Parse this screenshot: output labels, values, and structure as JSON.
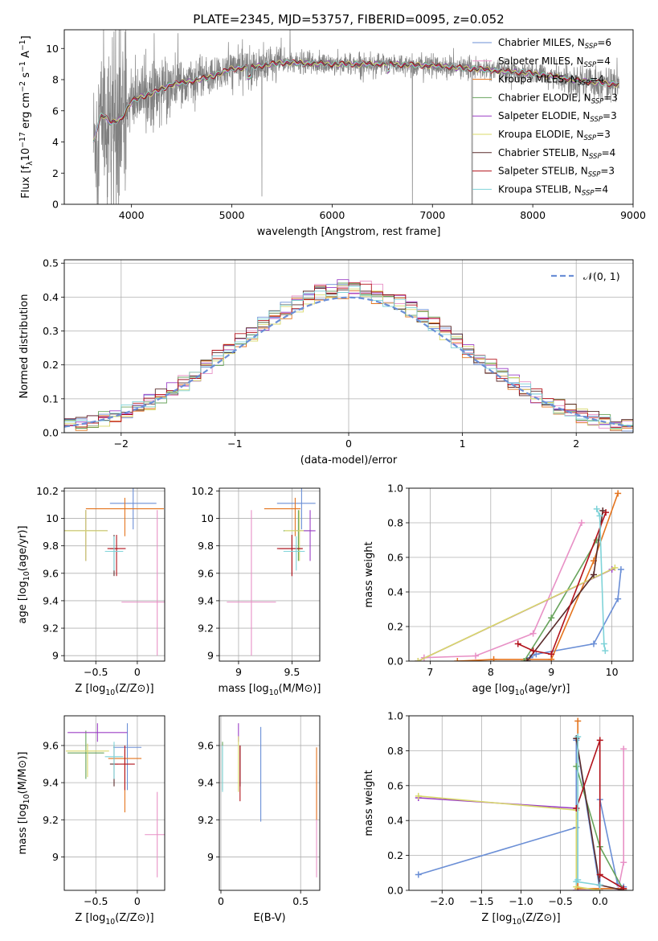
{
  "chart_data": [
    {
      "id": "spectrum",
      "type": "line",
      "title": "PLATE=2345, MJD=53757, FIBERID=0095, z=0.052",
      "xlabel": "wavelength [Angstrom, rest frame]",
      "ylabel": "Flux [f_λ 10^-17 erg cm^-2 s^-1 A^-1]",
      "xlim": [
        3330,
        9000
      ],
      "ylim": [
        0,
        11.2
      ],
      "xticks": [
        4000,
        5000,
        6000,
        7000,
        8000,
        9000
      ],
      "yticks": [
        0,
        2,
        4,
        6,
        8,
        10
      ],
      "grid": false,
      "legend_position": "right",
      "data_color": "#808080",
      "data_shape": {
        "x": [
          3620,
          3700,
          3800,
          3900,
          4000,
          4100,
          4200,
          4400,
          4600,
          4800,
          5000,
          5200,
          5500,
          6000,
          6500,
          7000,
          7400,
          7600,
          8000,
          8500,
          8850
        ],
        "y": [
          4.0,
          5.8,
          5.2,
          5.5,
          6.6,
          6.9,
          7.1,
          7.7,
          7.9,
          8.2,
          8.7,
          8.8,
          9.1,
          9.0,
          9.0,
          8.9,
          8.7,
          8.6,
          8.4,
          7.9,
          7.7
        ]
      },
      "series": [
        {
          "name": "Chabrier MILES",
          "nssp": "6",
          "color": "#6b8fd6"
        },
        {
          "name": "Salpeter MILES",
          "nssp": "4",
          "color": "#e891c6"
        },
        {
          "name": "Kroupa MILES",
          "nssp": "4",
          "color": "#e4741e"
        },
        {
          "name": "Chabrier ELODIE",
          "nssp": "3",
          "color": "#67a35b"
        },
        {
          "name": "Salpeter ELODIE",
          "nssp": "3",
          "color": "#9b3fc6"
        },
        {
          "name": "Kroupa ELODIE",
          "nssp": "3",
          "color": "#d8d86a"
        },
        {
          "name": "Chabrier STELIB",
          "nssp": "4",
          "color": "#5a2b2b"
        },
        {
          "name": "Salpeter STELIB",
          "nssp": "3",
          "color": "#b2121b"
        },
        {
          "name": "Kroupa STELIB",
          "nssp": "4",
          "color": "#7fd3d8"
        }
      ]
    },
    {
      "id": "residuals",
      "type": "line",
      "xlabel": "(data-model)/error",
      "ylabel": "Normed distribution",
      "xlim": [
        -2.5,
        2.5
      ],
      "ylim": [
        0,
        0.51
      ],
      "xticks": [
        -2,
        -1,
        0,
        1,
        2
      ],
      "yticks": [
        0.0,
        0.1,
        0.2,
        0.3,
        0.4,
        0.5
      ],
      "grid": true,
      "legend": "𝒩(0, 1)",
      "legend_position": "top-right",
      "bin_width": 0.1,
      "normal_color": "#6b8fd6"
    },
    {
      "id": "age_vs_Z",
      "type": "scatter",
      "xlabel": "Z [log10(Z/Z⊙)]",
      "ylabel": "age  [log10(age/yr)]",
      "xlim": [
        -0.88,
        0.33
      ],
      "ylim": [
        8.96,
        10.22
      ],
      "xticks": [
        -0.5,
        0.0
      ],
      "yticks": [
        9.0,
        9.2,
        9.4,
        9.6,
        9.8,
        10.0,
        10.2
      ],
      "grid": true,
      "points": [
        {
          "series": "Chabrier MILES",
          "x": -0.05,
          "y": 10.11,
          "xerr": [
            0.28,
            0.28
          ],
          "yerr": [
            0.19,
            0.11
          ]
        },
        {
          "series": "Salpeter MILES",
          "x": 0.24,
          "y": 9.39,
          "xerr": [
            0.43,
            0.43
          ],
          "yerr": [
            0.39,
            0.67
          ]
        },
        {
          "series": "Kroupa MILES",
          "x": -0.15,
          "y": 10.07,
          "xerr": [
            0.47,
            0.47
          ],
          "yerr": [
            0.2,
            0.08
          ]
        },
        {
          "series": "Chabrier ELODIE",
          "x": -0.62,
          "y": 9.91,
          "xerr": [
            0.26,
            0.26
          ],
          "yerr": [
            0.22,
            0.15
          ]
        },
        {
          "series": "Salpeter ELODIE",
          "x": -0.62,
          "y": 9.91,
          "xerr": [
            0.26,
            0.26
          ],
          "yerr": [
            0.22,
            0.15
          ]
        },
        {
          "series": "Kroupa ELODIE",
          "x": -0.62,
          "y": 9.91,
          "xerr": [
            0.26,
            0.26
          ],
          "yerr": [
            0.22,
            0.15
          ]
        },
        {
          "series": "Chabrier STELIB",
          "x": -0.28,
          "y": 9.78,
          "xerr": [
            0.05,
            0.05
          ],
          "yerr": [
            0.2,
            0.1
          ]
        },
        {
          "series": "Salpeter STELIB",
          "x": -0.25,
          "y": 9.78,
          "xerr": [
            0.11,
            0.11
          ],
          "yerr": [
            0.2,
            0.1
          ]
        },
        {
          "series": "Kroupa STELIB",
          "x": -0.28,
          "y": 9.76,
          "xerr": [
            0.11,
            0.11
          ],
          "yerr": [
            0.14,
            0.11
          ]
        }
      ]
    },
    {
      "id": "age_vs_mass",
      "type": "scatter",
      "xlabel": "mass [log10(M/M⊙)]",
      "ylabel": "",
      "xlim": [
        8.82,
        9.76
      ],
      "ylim": [
        8.96,
        10.22
      ],
      "xticks": [
        9.0,
        9.5
      ],
      "yticks": [
        9.0,
        9.2,
        9.4,
        9.6,
        9.8,
        10.0,
        10.2
      ],
      "grid": true,
      "points": [
        {
          "series": "Chabrier MILES",
          "x": 9.59,
          "y": 10.11,
          "xerr": [
            0.23,
            0.13
          ],
          "yerr": [
            0.19,
            0.11
          ]
        },
        {
          "series": "Salpeter MILES",
          "x": 9.12,
          "y": 9.39,
          "xerr": [
            0.23,
            0.23
          ],
          "yerr": [
            0.39,
            0.67
          ]
        },
        {
          "series": "Kroupa MILES",
          "x": 9.53,
          "y": 10.07,
          "xerr": [
            0.29,
            0.05
          ],
          "yerr": [
            0.2,
            0.08
          ]
        },
        {
          "series": "Chabrier ELODIE",
          "x": 9.56,
          "y": 9.91,
          "xerr": [
            0.14,
            0.12
          ],
          "yerr": [
            0.22,
            0.15
          ]
        },
        {
          "series": "Salpeter ELODIE",
          "x": 9.67,
          "y": 9.91,
          "xerr": [
            0.14,
            0.05
          ],
          "yerr": [
            0.22,
            0.15
          ]
        },
        {
          "series": "Kroupa ELODIE",
          "x": 9.57,
          "y": 9.91,
          "xerr": [
            0.14,
            0.04
          ],
          "yerr": [
            0.22,
            0.15
          ]
        },
        {
          "series": "Chabrier STELIB",
          "x": 9.5,
          "y": 9.78,
          "xerr": [
            0.12,
            0.1
          ],
          "yerr": [
            0.2,
            0.1
          ]
        },
        {
          "series": "Salpeter STELIB",
          "x": 9.5,
          "y": 9.78,
          "xerr": [
            0.14,
            0.1
          ],
          "yerr": [
            0.2,
            0.1
          ]
        },
        {
          "series": "Kroupa STELIB",
          "x": 9.54,
          "y": 9.76,
          "xerr": [
            0.12,
            0.08
          ],
          "yerr": [
            0.14,
            0.11
          ]
        }
      ]
    },
    {
      "id": "weight_vs_age",
      "type": "line",
      "xlabel": "age  [log10(age/yr)]",
      "ylabel": "mass weight",
      "xlim": [
        6.65,
        10.35
      ],
      "ylim": [
        0,
        1.0
      ],
      "xticks": [
        7,
        8,
        9,
        10
      ],
      "yticks": [
        0.0,
        0.2,
        0.4,
        0.6,
        0.8,
        1.0
      ],
      "grid": true,
      "series": [
        {
          "name": "Chabrier MILES",
          "x": [
            8.6,
            8.65,
            8.75,
            9.7,
            10.1,
            10.15
          ],
          "y": [
            0.0,
            0.02,
            0.04,
            0.1,
            0.36,
            0.53
          ]
        },
        {
          "name": "Salpeter MILES",
          "x": [
            6.9,
            7.75,
            8.7,
            9.5
          ],
          "y": [
            0.02,
            0.03,
            0.16,
            0.8
          ]
        },
        {
          "name": "Kroupa MILES",
          "x": [
            7.45,
            8.05,
            9.0,
            9.7,
            10.1
          ],
          "y": [
            0.0,
            0.01,
            0.01,
            0.58,
            0.97
          ]
        },
        {
          "name": "Chabrier ELODIE",
          "x": [
            8.55,
            9.0,
            9.75
          ],
          "y": [
            0.0,
            0.25,
            0.7
          ]
        },
        {
          "name": "Salpeter ELODIE",
          "x": [
            6.8,
            10.0
          ],
          "y": [
            0.0,
            0.53
          ]
        },
        {
          "name": "Kroupa ELODIE",
          "x": [
            6.8,
            10.05
          ],
          "y": [
            0.0,
            0.54
          ]
        },
        {
          "name": "Chabrier STELIB",
          "x": [
            8.6,
            9.7,
            9.85
          ],
          "y": [
            0.0,
            0.5,
            0.87
          ]
        },
        {
          "name": "Salpeter STELIB",
          "x": [
            8.45,
            8.7,
            9.0,
            9.9
          ],
          "y": [
            0.1,
            0.06,
            0.04,
            0.86
          ]
        },
        {
          "name": "Kroupa STELIB",
          "x": [
            9.75,
            9.8,
            9.87,
            9.89
          ],
          "y": [
            0.88,
            0.84,
            0.1,
            0.06
          ]
        }
      ]
    },
    {
      "id": "mass_vs_Z",
      "type": "scatter",
      "xlabel": "Z [log10(Z/Z⊙)]",
      "ylabel": "mass [log10(M/M⊙)]",
      "xlim": [
        -0.88,
        0.33
      ],
      "ylim": [
        8.82,
        9.76
      ],
      "xticks": [
        -0.5,
        0.0
      ],
      "yticks": [
        9.0,
        9.2,
        9.4,
        9.6
      ],
      "grid": true,
      "points": [
        {
          "series": "Chabrier MILES",
          "x": -0.12,
          "y": 9.59,
          "xerr": [
            0.17,
            0.17
          ],
          "yerr": [
            0.23,
            0.13
          ]
        },
        {
          "series": "Salpeter MILES",
          "x": 0.24,
          "y": 9.12,
          "xerr": [
            0.15,
            0.15
          ],
          "yerr": [
            0.23,
            0.23
          ]
        },
        {
          "series": "Kroupa MILES",
          "x": -0.15,
          "y": 9.53,
          "xerr": [
            0.2,
            0.2
          ],
          "yerr": [
            0.29,
            0.05
          ]
        },
        {
          "series": "Chabrier ELODIE",
          "x": -0.62,
          "y": 9.56,
          "xerr": [
            0.22,
            0.22
          ],
          "yerr": [
            0.14,
            0.12
          ]
        },
        {
          "series": "Salpeter ELODIE",
          "x": -0.48,
          "y": 9.67,
          "xerr": [
            0.36,
            0.36
          ],
          "yerr": [
            0.05,
            0.05
          ]
        },
        {
          "series": "Kroupa ELODIE",
          "x": -0.6,
          "y": 9.57,
          "xerr": [
            0.26,
            0.26
          ],
          "yerr": [
            0.14,
            0.04
          ]
        },
        {
          "series": "Chabrier STELIB",
          "x": -0.28,
          "y": 9.5,
          "xerr": [
            0.05,
            0.05
          ],
          "yerr": [
            0.12,
            0.1
          ]
        },
        {
          "series": "Salpeter STELIB",
          "x": -0.15,
          "y": 9.5,
          "xerr": [
            0.12,
            0.12
          ],
          "yerr": [
            0.14,
            0.1
          ]
        },
        {
          "series": "Kroupa STELIB",
          "x": -0.28,
          "y": 9.54,
          "xerr": [
            0.11,
            0.11
          ],
          "yerr": [
            0.12,
            0.08
          ]
        }
      ]
    },
    {
      "id": "mass_vs_ebv",
      "type": "scatter",
      "xlabel": "E(B-V)",
      "ylabel": "",
      "xlim": [
        -0.01,
        0.62
      ],
      "ylim": [
        8.82,
        9.76
      ],
      "xticks": [
        0.0,
        0.5
      ],
      "yticks": [
        9.0,
        9.2,
        9.4,
        9.6
      ],
      "grid": true,
      "points": [
        {
          "series": "Chabrier MILES",
          "x": 0.25,
          "y": 9.59,
          "xerr": [
            0,
            0
          ],
          "yerr": [
            0.4,
            0.11
          ]
        },
        {
          "series": "Salpeter MILES",
          "x": 0.6,
          "y": 9.12,
          "xerr": [
            0,
            0
          ],
          "yerr": [
            0.23,
            0.32
          ]
        },
        {
          "series": "Kroupa MILES",
          "x": 0.6,
          "y": 9.4,
          "xerr": [
            0,
            0
          ],
          "yerr": [
            0.2,
            0.19
          ]
        },
        {
          "series": "Chabrier ELODIE",
          "x": 0.01,
          "y": 9.5,
          "xerr": [
            0,
            0
          ],
          "yerr": [
            0.14,
            0.12
          ]
        },
        {
          "series": "Salpeter ELODIE",
          "x": 0.11,
          "y": 9.67,
          "xerr": [
            0,
            0
          ],
          "yerr": [
            0.05,
            0.05
          ]
        },
        {
          "series": "Kroupa ELODIE",
          "x": 0.11,
          "y": 9.57,
          "xerr": [
            0,
            0
          ],
          "yerr": [
            0.22,
            0.08
          ]
        },
        {
          "series": "Chabrier STELIB",
          "x": 0.12,
          "y": 9.5,
          "xerr": [
            0,
            0
          ],
          "yerr": [
            0.12,
            0.1
          ]
        },
        {
          "series": "Salpeter STELIB",
          "x": 0.12,
          "y": 9.5,
          "xerr": [
            0,
            0
          ],
          "yerr": [
            0.2,
            0.1
          ]
        },
        {
          "series": "Kroupa STELIB",
          "x": 0.01,
          "y": 9.5,
          "xerr": [
            0,
            0
          ],
          "yerr": [
            0.15,
            0.1
          ]
        }
      ]
    },
    {
      "id": "weight_vs_Z",
      "type": "line",
      "xlabel": "Z [log10(Z/Z⊙)]",
      "ylabel": "mass weight",
      "xlim": [
        -2.42,
        0.42
      ],
      "ylim": [
        0,
        1.0
      ],
      "xticks": [
        -2.0,
        -1.5,
        -1.0,
        -0.5,
        0.0
      ],
      "yticks": [
        0.0,
        0.2,
        0.4,
        0.6,
        0.8,
        1.0
      ],
      "grid": true,
      "series": [
        {
          "name": "Chabrier MILES",
          "x": [
            -2.3,
            -0.3,
            -0.3,
            0.0,
            0.0,
            0.22,
            0.3
          ],
          "y": [
            0.09,
            0.36,
            0.86,
            0.0,
            0.52,
            0.04,
            0.02
          ]
        },
        {
          "name": "Salpeter MILES",
          "x": [
            0.3,
            0.3,
            0.23
          ],
          "y": [
            0.81,
            0.16,
            0.0
          ]
        },
        {
          "name": "Kroupa MILES",
          "x": [
            -0.28,
            -0.28,
            0.3
          ],
          "y": [
            0.97,
            0.01,
            0.01
          ]
        },
        {
          "name": "Chabrier ELODIE",
          "x": [
            -0.3,
            0.0,
            0.3
          ],
          "y": [
            0.71,
            0.25,
            0.0
          ]
        },
        {
          "name": "Salpeter ELODIE",
          "x": [
            -2.3,
            -0.3,
            -0.3,
            0.0
          ],
          "y": [
            0.53,
            0.47,
            0.0,
            0.0
          ]
        },
        {
          "name": "Kroupa ELODIE",
          "x": [
            -2.3,
            -0.3,
            -0.3,
            0.0
          ],
          "y": [
            0.54,
            0.46,
            0.02,
            0.0
          ]
        },
        {
          "name": "Chabrier STELIB",
          "x": [
            -0.3,
            0.0,
            0.3
          ],
          "y": [
            0.87,
            0.03,
            0.0
          ]
        },
        {
          "name": "Salpeter STELIB",
          "x": [
            -0.3,
            0.0,
            0.0,
            0.3
          ],
          "y": [
            0.47,
            0.86,
            0.09,
            0.01
          ]
        },
        {
          "name": "Kroupa STELIB",
          "x": [
            -0.28,
            -0.28,
            -0.3,
            0.0
          ],
          "y": [
            0.88,
            0.06,
            0.05,
            0.03
          ]
        }
      ]
    }
  ]
}
